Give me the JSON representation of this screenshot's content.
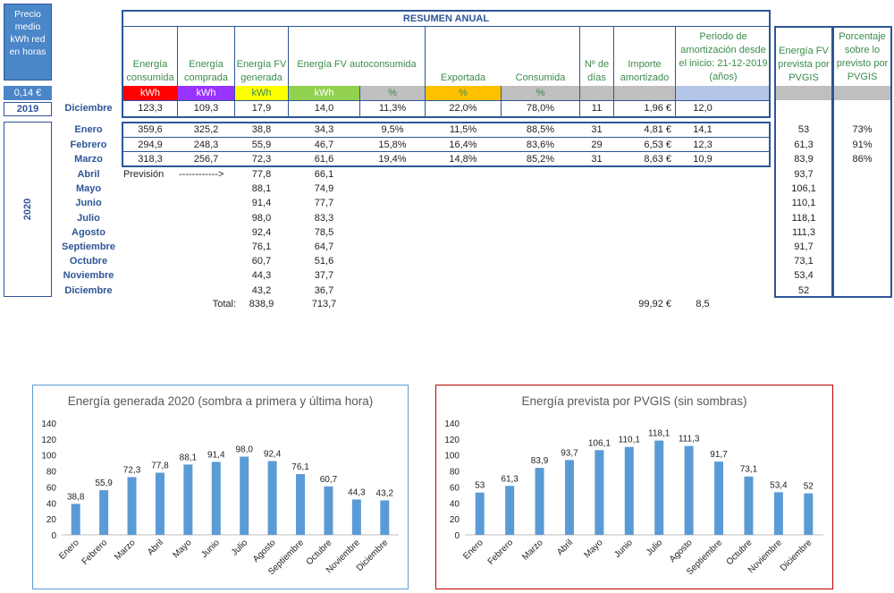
{
  "left_panel": {
    "title": "Precio medio kWh red en horas",
    "price": "0,14 €",
    "year_2019": "2019",
    "year_2020": "2020"
  },
  "summary": {
    "title": "RESUMEN ANUAL",
    "headers": {
      "energia_consumida": "Energía consumida",
      "energia_comprada": "Energía comprada",
      "energia_fv_generada": "Energía FV generada",
      "energia_fv_autoconsumida": "Energía FV autoconsumida",
      "exportada": "Exportada",
      "consumida": "Consumida",
      "n_dias": "Nº de días",
      "importe_amortizado": "Importe amortizado",
      "periodo_amortizacion": "Periodo de amortización desde el inicio: 21-12-2019      (años)",
      "energia_pvgis": "Energía FV prevista por PVGIS",
      "porcentaje_pvgis": "Porcentaje sobre lo previsto por PVGIS"
    },
    "units": [
      "kWh",
      "kWh",
      "kWh",
      "kWh",
      "%",
      "%",
      "%"
    ],
    "unit_colors": [
      "#ff0000",
      "#9933ff",
      "#ffff00",
      "#92d050",
      "#bfbfbf",
      "#ffc000",
      "#bfbfbf"
    ],
    "row_2019": {
      "month": "Diciembre",
      "values": [
        "123,3",
        "109,3",
        "17,9",
        "14,0",
        "11,3%",
        "22,0%",
        "78,0%",
        "11",
        "1,96 €",
        "12,0"
      ]
    },
    "rows_2020": [
      {
        "month": "Enero",
        "values": [
          "359,6",
          "325,2",
          "38,8",
          "34,3",
          "9,5%",
          "11,5%",
          "88,5%",
          "31",
          "4,81 €",
          "14,1"
        ],
        "pvgis": "53",
        "pct": "73%"
      },
      {
        "month": "Febrero",
        "values": [
          "294,9",
          "248,3",
          "55,9",
          "46,7",
          "15,8%",
          "16,4%",
          "83,6%",
          "29",
          "6,53 €",
          "12,3"
        ],
        "pvgis": "61,3",
        "pct": "91%"
      },
      {
        "month": "Marzo",
        "values": [
          "318,3",
          "256,7",
          "72,3",
          "61,6",
          "19,4%",
          "14,8%",
          "85,2%",
          "31",
          "8,63 €",
          "10,9"
        ],
        "pvgis": "83,9",
        "pct": "86%"
      }
    ],
    "forecast_label": "Previsión",
    "forecast_arrow": "------------>",
    "forecast_rows": [
      {
        "month": "Abril",
        "gen": "77,8",
        "auto": "66,1",
        "pvgis": "93,7"
      },
      {
        "month": "Mayo",
        "gen": "88,1",
        "auto": "74,9",
        "pvgis": "106,1"
      },
      {
        "month": "Junio",
        "gen": "91,4",
        "auto": "77,7",
        "pvgis": "110,1"
      },
      {
        "month": "Julio",
        "gen": "98,0",
        "auto": "83,3",
        "pvgis": "118,1"
      },
      {
        "month": "Agosto",
        "gen": "92,4",
        "auto": "78,5",
        "pvgis": "111,3"
      },
      {
        "month": "Septiembre",
        "gen": "76,1",
        "auto": "64,7",
        "pvgis": "91,7"
      },
      {
        "month": "Octubre",
        "gen": "60,7",
        "auto": "51,6",
        "pvgis": "73,1"
      },
      {
        "month": "Noviembre",
        "gen": "44,3",
        "auto": "37,7",
        "pvgis": "53,4"
      },
      {
        "month": "Diciembre",
        "gen": "43,2",
        "auto": "36,7",
        "pvgis": "52"
      }
    ],
    "total_label": "Total:",
    "total_gen": "838,9",
    "total_auto": "713,7",
    "total_importe": "99,92 €",
    "total_periodo": "8,5"
  },
  "chart_data": [
    {
      "type": "bar",
      "title": "Energía generada 2020 (sombra a primera y última hora)",
      "categories": [
        "Enero",
        "Febrero",
        "Marzo",
        "Abril",
        "Mayo",
        "Junio",
        "Julio",
        "Agosto",
        "Septiembre",
        "Octubre",
        "Noviembre",
        "Diciembre"
      ],
      "values": [
        38.8,
        55.9,
        72.3,
        77.8,
        88.1,
        91.4,
        98.0,
        92.4,
        76.1,
        60.7,
        44.3,
        43.2
      ],
      "value_labels": [
        "38,8",
        "55,9",
        "72,3",
        "77,8",
        "88,1",
        "91,4",
        "98,0",
        "92,4",
        "76,1",
        "60,7",
        "44,3",
        "43,2"
      ],
      "ylim": [
        0,
        140
      ],
      "yticks": [
        0,
        20,
        40,
        60,
        80,
        100,
        120,
        140
      ],
      "bar_color": "#5b9bd5",
      "border_color": "#5b9bd5"
    },
    {
      "type": "bar",
      "title": "Energía prevista por PVGIS (sin sombras)",
      "categories": [
        "Enero",
        "Febrero",
        "Marzo",
        "Abril",
        "Mayo",
        "Junio",
        "Julio",
        "Agosto",
        "Septiembre",
        "Octubre",
        "Noviembre",
        "Diciembre"
      ],
      "values": [
        53,
        61.3,
        83.9,
        93.7,
        106.1,
        110.1,
        118.1,
        111.3,
        91.7,
        73.1,
        53.4,
        52
      ],
      "value_labels": [
        "53",
        "61,3",
        "83,9",
        "93,7",
        "106,1",
        "110,1",
        "118,1",
        "111,3",
        "91,7",
        "73,1",
        "53,4",
        "52"
      ],
      "ylim": [
        0,
        140
      ],
      "yticks": [
        0,
        20,
        40,
        60,
        80,
        100,
        120,
        140
      ],
      "bar_color": "#5b9bd5",
      "border_color": "#c00000"
    }
  ]
}
